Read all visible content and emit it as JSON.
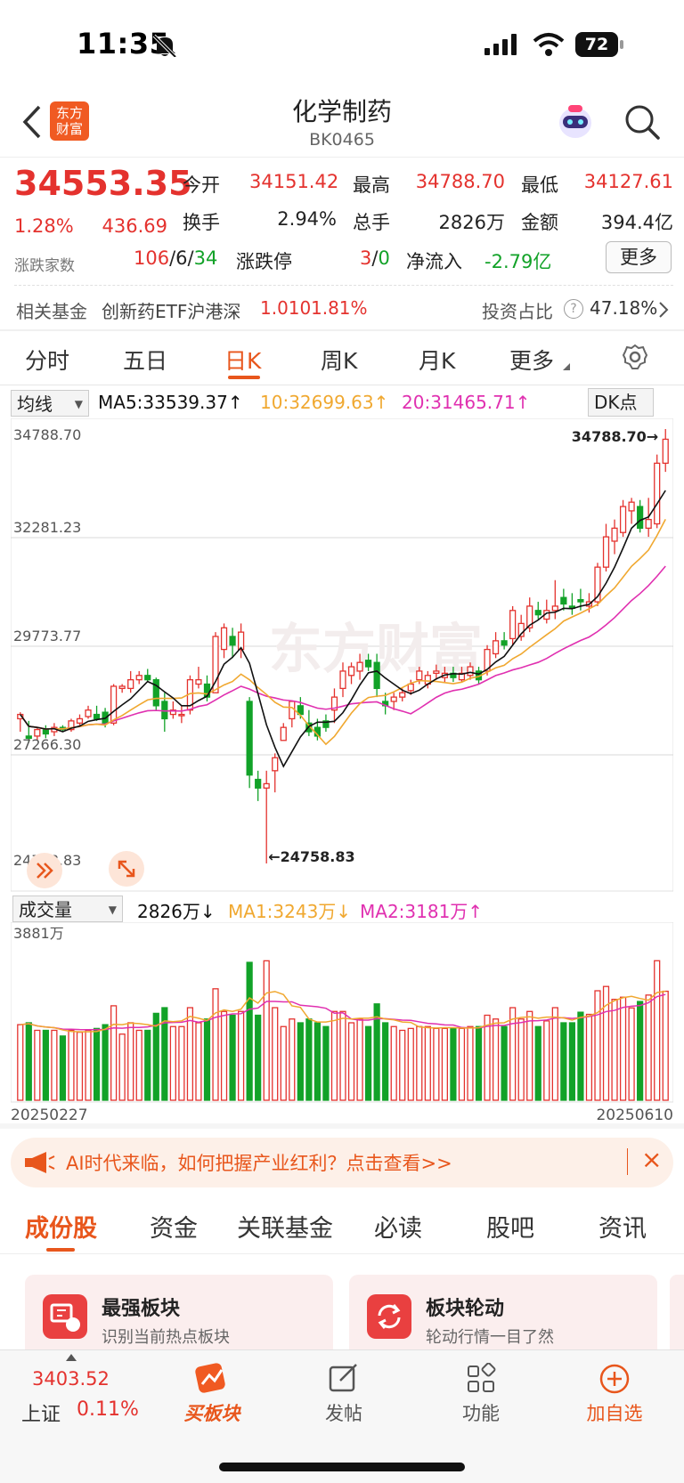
{
  "status": {
    "time": "11:35",
    "battery": "72"
  },
  "nav": {
    "title": "化学制药",
    "code": "BK0465",
    "logo_text": "东方财富",
    "back_icon": "chevron-left-icon",
    "search_icon": "search-icon"
  },
  "quote": {
    "price": "34553.35",
    "change_pct": "1.28%",
    "change_amt": "436.69",
    "open_label": "今开",
    "open": "34151.42",
    "high_label": "最高",
    "high": "34788.70",
    "low_label": "最低",
    "low": "34127.61",
    "turnover_label": "换手",
    "turnover": "2.94%",
    "volume_label": "总手",
    "volume": "2826万",
    "amount_label": "金额",
    "amount": "394.4亿",
    "breadth_label": "涨跌家数",
    "up": "106",
    "flat": "6",
    "down": "34",
    "limit_label": "涨跌停",
    "limit_up": "3",
    "limit_down": "0",
    "netflow_label": "净流入",
    "netflow": "-2.79亿",
    "more_button": "更多"
  },
  "fund": {
    "label": "相关基金",
    "name": "创新药ETF沪港深",
    "price": "1.010",
    "pct": "1.81%",
    "ratio_label": "投资占比",
    "ratio": "47.18%"
  },
  "chart_tabs": [
    {
      "label": "分时"
    },
    {
      "label": "五日"
    },
    {
      "label": "日K"
    },
    {
      "label": "周K"
    },
    {
      "label": "月K"
    },
    {
      "label": "更多"
    }
  ],
  "active_chart_tab": "日K",
  "ma_bar": {
    "selector": "均线",
    "ma5": "MA5:33539.37↑",
    "ma10": "10:32699.63↑",
    "ma20": "20:31465.71↑",
    "dk": "DK点"
  },
  "kline_axis": {
    "y1": "34788.70",
    "y2": "32281.23",
    "y3": "29773.77",
    "y4": "27266.30",
    "y5": "24758.83",
    "max_marker": "34788.70→",
    "min_marker": "←24758.83",
    "watermark": "东方财富"
  },
  "vol_bar": {
    "selector": "成交量",
    "vol": "2826万↓",
    "ma1": "MA1:3243万↓",
    "ma2": "MA2:3181万↑",
    "max": "3881万",
    "date_start": "20250227",
    "date_end": "20250610"
  },
  "banner": {
    "text": "AI时代来临，如何把握产业红利？点击查看>>"
  },
  "bottom_tabs": [
    {
      "label": "成份股"
    },
    {
      "label": "资金"
    },
    {
      "label": "关联基金"
    },
    {
      "label": "必读"
    },
    {
      "label": "股吧"
    },
    {
      "label": "资讯"
    }
  ],
  "cards": [
    {
      "title": "最强板块",
      "desc": "识别当前热点板块"
    },
    {
      "title": "板块轮动",
      "desc": "轮动行情一目了然"
    }
  ],
  "dock": {
    "index_value": "3403.52",
    "index_name": "上证",
    "index_pct": "0.11%",
    "buy": "买板块",
    "post": "发帖",
    "func": "功能",
    "add": "加自选"
  },
  "colors": {
    "up": "#e4322e",
    "down": "#12a228",
    "ma5": "#111111",
    "ma10": "#f0a830",
    "ma20": "#e030b0",
    "accent": "#e8561c"
  },
  "chart_data": {
    "type": "candlestick",
    "ylim": [
      24758.83,
      34788.7
    ],
    "y_ticks": [
      34788.7,
      32281.23,
      29773.77,
      27266.3,
      24758.83
    ],
    "x_range": [
      "20250227",
      "20250610"
    ],
    "candles": [
      [
        28100,
        28250,
        27800,
        28200
      ],
      [
        27700,
        28050,
        27550,
        27650
      ],
      [
        27700,
        27900,
        27600,
        27850
      ],
      [
        27850,
        27950,
        27650,
        27750
      ],
      [
        27800,
        28000,
        27700,
        27900
      ],
      [
        27900,
        27950,
        27800,
        27850
      ],
      [
        27850,
        28100,
        27800,
        28050
      ],
      [
        28000,
        28200,
        27950,
        28100
      ],
      [
        28150,
        28400,
        28100,
        28300
      ],
      [
        28200,
        28400,
        28050,
        28100
      ],
      [
        28250,
        28350,
        27900,
        28000
      ],
      [
        28000,
        28900,
        27950,
        28850
      ],
      [
        28800,
        28900,
        28700,
        28850
      ],
      [
        28800,
        29200,
        28700,
        29000
      ],
      [
        29000,
        29200,
        28900,
        29100
      ],
      [
        29100,
        29250,
        28950,
        29000
      ],
      [
        29000,
        29050,
        28300,
        28400
      ],
      [
        28500,
        28700,
        27800,
        28100
      ],
      [
        28200,
        28500,
        28100,
        28300
      ],
      [
        28200,
        28400,
        28000,
        28200
      ],
      [
        28300,
        29100,
        28200,
        29000
      ],
      [
        28900,
        29300,
        28800,
        29000
      ],
      [
        28900,
        29100,
        28500,
        28600
      ],
      [
        28700,
        30100,
        28700,
        30000
      ],
      [
        29700,
        30300,
        29500,
        30200
      ],
      [
        30000,
        30200,
        29500,
        29800
      ],
      [
        29700,
        30300,
        29500,
        30100
      ],
      [
        28500,
        28600,
        26500,
        26800
      ],
      [
        26700,
        26900,
        26200,
        26500
      ],
      [
        26500,
        26900,
        24758.83,
        26600
      ],
      [
        26900,
        27300,
        26400,
        27200
      ],
      [
        27600,
        28000,
        27600,
        27900
      ],
      [
        28100,
        28500,
        27900,
        28500
      ],
      [
        28400,
        28600,
        28100,
        28200
      ],
      [
        28000,
        28300,
        27700,
        27800
      ],
      [
        27900,
        28100,
        27600,
        27700
      ],
      [
        28050,
        28200,
        27800,
        27900
      ],
      [
        28300,
        28800,
        28000,
        28600
      ],
      [
        28800,
        29400,
        28600,
        29200
      ],
      [
        29100,
        29400,
        28900,
        29300
      ],
      [
        29200,
        29600,
        29000,
        29400
      ],
      [
        29450,
        29600,
        29200,
        29300
      ],
      [
        29400,
        29600,
        28600,
        28800
      ],
      [
        28500,
        28700,
        28200,
        28400
      ],
      [
        28500,
        28700,
        28300,
        28600
      ],
      [
        28600,
        28800,
        28500,
        28700
      ],
      [
        28750,
        29000,
        28650,
        28900
      ],
      [
        29000,
        29300,
        28900,
        29200
      ],
      [
        28900,
        29200,
        28800,
        29100
      ],
      [
        29150,
        29350,
        29000,
        29200
      ],
      [
        29050,
        29300,
        28950,
        29150
      ],
      [
        29150,
        29300,
        28950,
        29050
      ],
      [
        29000,
        29300,
        28950,
        29150
      ],
      [
        29100,
        29400,
        29000,
        29300
      ],
      [
        29200,
        29300,
        28900,
        29000
      ],
      [
        29200,
        29800,
        29100,
        29700
      ],
      [
        29600,
        30100,
        29500,
        29900
      ],
      [
        29900,
        30100,
        29700,
        29800
      ],
      [
        29950,
        30700,
        29800,
        30600
      ],
      [
        30000,
        30500,
        29900,
        30300
      ],
      [
        30200,
        30900,
        30100,
        30700
      ],
      [
        30600,
        30800,
        30400,
        30500
      ],
      [
        30400,
        30850,
        30300,
        30600
      ],
      [
        30600,
        31300,
        30400,
        30700
      ],
      [
        30900,
        31100,
        30600,
        30750
      ],
      [
        30700,
        31000,
        30500,
        30650
      ],
      [
        30850,
        31100,
        30600,
        30800
      ],
      [
        30700,
        31000,
        30550,
        30800
      ],
      [
        30800,
        31700,
        30700,
        31600
      ],
      [
        31600,
        32600,
        31500,
        32300
      ],
      [
        32200,
        32700,
        31900,
        32500
      ],
      [
        32400,
        33150,
        32300,
        33000
      ],
      [
        32900,
        33200,
        32600,
        33100
      ],
      [
        33000,
        33150,
        32400,
        32500
      ],
      [
        32500,
        33200,
        32300,
        32700
      ],
      [
        32600,
        34200,
        32500,
        34000
      ],
      [
        34000,
        34788.7,
        33800,
        34553.35
      ]
    ],
    "volume_max": 3881,
    "volume_unit": "万"
  }
}
